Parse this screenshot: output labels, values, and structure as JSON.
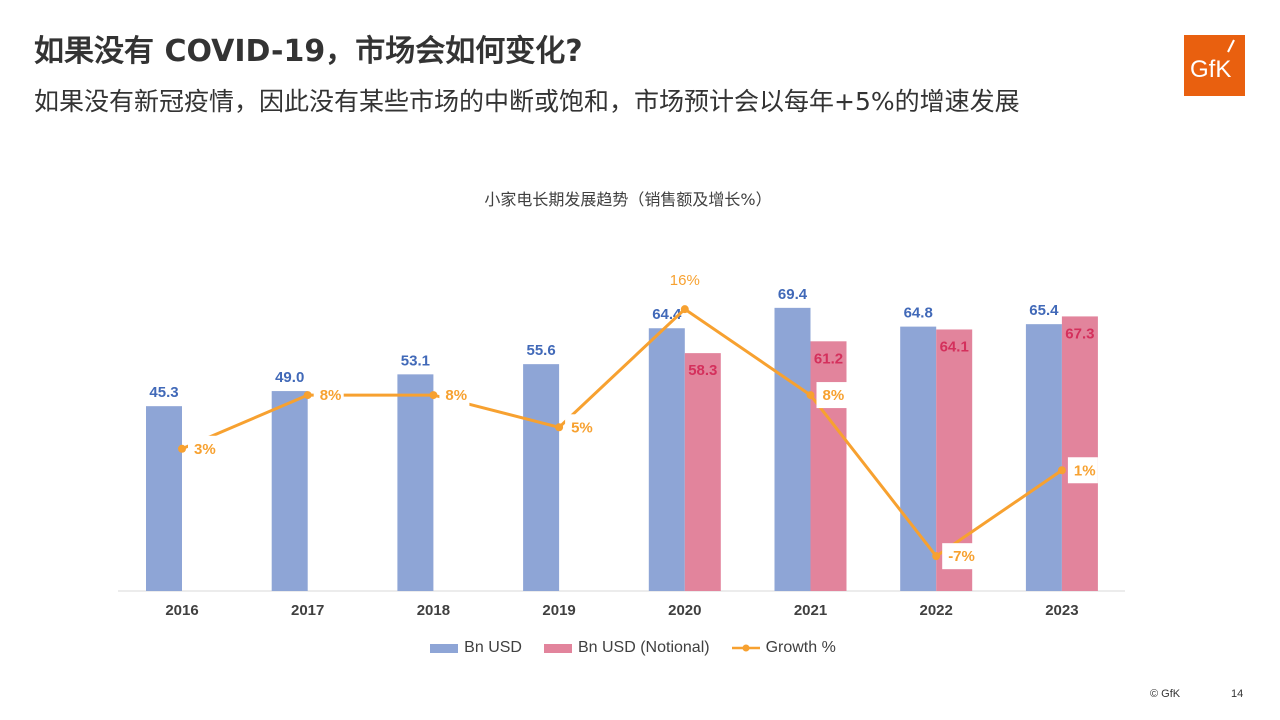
{
  "header": {
    "title": "如果没有 COVID-19，市场会如何变化?",
    "subtitle": "如果没有新冠疫情，因此没有某些市场的中断或饱和，市场预计会以每年+5%的增速发展",
    "logo_text": "GfK"
  },
  "footer": {
    "copyright": "© GfK",
    "page": "14"
  },
  "colors": {
    "blue": "#8EA5D6",
    "pink": "#E2849C",
    "orange": "#F7A130",
    "blue_label": "#4169B8",
    "pink_label": "#D4305C",
    "logo": "#E9600F"
  },
  "chart_data": {
    "type": "bar+line",
    "title": "小家电长期发展趋势（销售额及增长%）",
    "categories": [
      "2016",
      "2017",
      "2018",
      "2019",
      "2020",
      "2021",
      "2022",
      "2023"
    ],
    "series": [
      {
        "name": "Bn USD",
        "type": "bar",
        "values": [
          45.3,
          49.0,
          53.1,
          55.6,
          64.4,
          69.4,
          64.8,
          65.4
        ],
        "labels": [
          "45.3",
          "49.0",
          "53.1",
          "55.6",
          "64.4",
          "69.4",
          "64.8",
          "65.4"
        ]
      },
      {
        "name": "Bn USD (Notional)",
        "type": "bar",
        "values": [
          null,
          null,
          null,
          null,
          58.3,
          61.2,
          64.1,
          67.3
        ],
        "labels": [
          "",
          "",
          "",
          "",
          "58.3",
          "61.2",
          "64.1",
          "67.3"
        ]
      },
      {
        "name": "Growth %",
        "type": "line",
        "axis": "secondary",
        "values": [
          3,
          8,
          8,
          5,
          16,
          8,
          -7,
          1
        ],
        "labels": [
          "3%",
          "8%",
          "8%",
          "5%",
          "16%",
          "8%",
          "-7%",
          "1%"
        ]
      }
    ],
    "legend": "bottom",
    "grid": false
  }
}
